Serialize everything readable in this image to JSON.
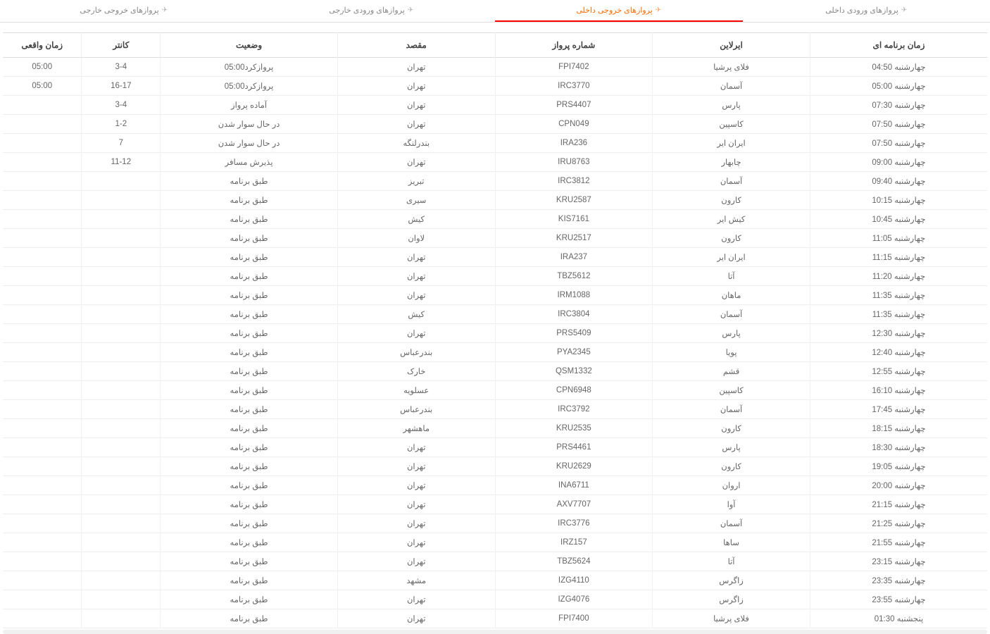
{
  "tabs": [
    {
      "label": "پروازهای ورودی داخلی",
      "active": false
    },
    {
      "label": "پروازهای خروجی داخلی",
      "active": true
    },
    {
      "label": "پروازهای ورودی خارجی",
      "active": false
    },
    {
      "label": "پروازهای خروجی خارجی",
      "active": false
    }
  ],
  "columns": {
    "schedule": "زمان برنامه ای",
    "airline": "ایرلاین",
    "flight": "شماره پرواز",
    "destination": "مقصد",
    "status": "وضعیت",
    "counter": "کانتر",
    "actual": "زمان واقعی"
  },
  "rows": [
    {
      "schedule": "چهارشنبه 04:50",
      "airline": "فلای پرشیا",
      "flight": "FPI7402",
      "destination": "تهران",
      "status": "پروازکرد05:00",
      "counter": "3-4",
      "actual": "05:00"
    },
    {
      "schedule": "چهارشنبه 05:00",
      "airline": "آسمان",
      "flight": "IRC3770",
      "destination": "تهران",
      "status": "پروازکرد05:00",
      "counter": "16-17",
      "actual": "05:00"
    },
    {
      "schedule": "چهارشنبه 07:30",
      "airline": "پارس",
      "flight": "PRS4407",
      "destination": "تهران",
      "status": "آماده پرواز",
      "counter": "3-4",
      "actual": ""
    },
    {
      "schedule": "چهارشنبه 07:50",
      "airline": "کاسپین",
      "flight": "CPN049",
      "destination": "تهران",
      "status": "در حال سوار شدن",
      "counter": "1-2",
      "actual": ""
    },
    {
      "schedule": "چهارشنبه 07:50",
      "airline": "ایران ایر",
      "flight": "IRA236",
      "destination": "بندرلنگه",
      "status": "در حال سوار شدن",
      "counter": "7",
      "actual": ""
    },
    {
      "schedule": "چهارشنبه 09:00",
      "airline": "چابهار",
      "flight": "IRU8763",
      "destination": "تهران",
      "status": "پذیرش مسافر",
      "counter": "11-12",
      "actual": ""
    },
    {
      "schedule": "چهارشنبه 09:40",
      "airline": "آسمان",
      "flight": "IRC3812",
      "destination": "تبریز",
      "status": "طبق برنامه",
      "counter": "",
      "actual": ""
    },
    {
      "schedule": "چهارشنبه 10:15",
      "airline": "کارون",
      "flight": "KRU2587",
      "destination": "سیری",
      "status": "طبق برنامه",
      "counter": "",
      "actual": ""
    },
    {
      "schedule": "چهارشنبه 10:45",
      "airline": "کیش ایر",
      "flight": "KIS7161",
      "destination": "کیش",
      "status": "طبق برنامه",
      "counter": "",
      "actual": ""
    },
    {
      "schedule": "چهارشنبه 11:05",
      "airline": "کارون",
      "flight": "KRU2517",
      "destination": "لاوان",
      "status": "طبق برنامه",
      "counter": "",
      "actual": ""
    },
    {
      "schedule": "چهارشنبه 11:15",
      "airline": "ایران ایر",
      "flight": "IRA237",
      "destination": "تهران",
      "status": "طبق برنامه",
      "counter": "",
      "actual": ""
    },
    {
      "schedule": "چهارشنبه 11:20",
      "airline": "آتا",
      "flight": "TBZ5612",
      "destination": "تهران",
      "status": "طبق برنامه",
      "counter": "",
      "actual": ""
    },
    {
      "schedule": "چهارشنبه 11:35",
      "airline": "ماهان",
      "flight": "IRM1088",
      "destination": "تهران",
      "status": "طبق برنامه",
      "counter": "",
      "actual": ""
    },
    {
      "schedule": "چهارشنبه 11:35",
      "airline": "آسمان",
      "flight": "IRC3804",
      "destination": "کیش",
      "status": "طبق برنامه",
      "counter": "",
      "actual": ""
    },
    {
      "schedule": "چهارشنبه 12:30",
      "airline": "پارس",
      "flight": "PRS5409",
      "destination": "تهران",
      "status": "طبق برنامه",
      "counter": "",
      "actual": ""
    },
    {
      "schedule": "چهارشنبه 12:40",
      "airline": "پویا",
      "flight": "PYA2345",
      "destination": "بندرعباس",
      "status": "طبق برنامه",
      "counter": "",
      "actual": ""
    },
    {
      "schedule": "چهارشنبه 12:55",
      "airline": "قشم",
      "flight": "QSM1332",
      "destination": "خارک",
      "status": "طبق برنامه",
      "counter": "",
      "actual": ""
    },
    {
      "schedule": "چهارشنبه 16:10",
      "airline": "کاسپین",
      "flight": "CPN6948",
      "destination": "عسلویه",
      "status": "طبق برنامه",
      "counter": "",
      "actual": ""
    },
    {
      "schedule": "چهارشنبه 17:45",
      "airline": "آسمان",
      "flight": "IRC3792",
      "destination": "بندرعباس",
      "status": "طبق برنامه",
      "counter": "",
      "actual": ""
    },
    {
      "schedule": "چهارشنبه 18:15",
      "airline": "کارون",
      "flight": "KRU2535",
      "destination": "ماهشهر",
      "status": "طبق برنامه",
      "counter": "",
      "actual": ""
    },
    {
      "schedule": "چهارشنبه 18:30",
      "airline": "پارس",
      "flight": "PRS4461",
      "destination": "تهران",
      "status": "طبق برنامه",
      "counter": "",
      "actual": ""
    },
    {
      "schedule": "چهارشنبه 19:05",
      "airline": "کارون",
      "flight": "KRU2629",
      "destination": "تهران",
      "status": "طبق برنامه",
      "counter": "",
      "actual": ""
    },
    {
      "schedule": "چهارشنبه 20:00",
      "airline": "اروان",
      "flight": "INA6711",
      "destination": "تهران",
      "status": "طبق برنامه",
      "counter": "",
      "actual": ""
    },
    {
      "schedule": "چهارشنبه 21:15",
      "airline": "آوا",
      "flight": "AXV7707",
      "destination": "تهران",
      "status": "طبق برنامه",
      "counter": "",
      "actual": ""
    },
    {
      "schedule": "چهارشنبه 21:25",
      "airline": "آسمان",
      "flight": "IRC3776",
      "destination": "تهران",
      "status": "طبق برنامه",
      "counter": "",
      "actual": ""
    },
    {
      "schedule": "چهارشنبه 21:55",
      "airline": "ساها",
      "flight": "IRZ157",
      "destination": "تهران",
      "status": "طبق برنامه",
      "counter": "",
      "actual": ""
    },
    {
      "schedule": "چهارشنبه 23:15",
      "airline": "آتا",
      "flight": "TBZ5624",
      "destination": "تهران",
      "status": "طبق برنامه",
      "counter": "",
      "actual": ""
    },
    {
      "schedule": "چهارشنبه 23:35",
      "airline": "زاگرس",
      "flight": "IZG4110",
      "destination": "مشهد",
      "status": "طبق برنامه",
      "counter": "",
      "actual": ""
    },
    {
      "schedule": "چهارشنبه 23:55",
      "airline": "زاگرس",
      "flight": "IZG4076",
      "destination": "تهران",
      "status": "طبق برنامه",
      "counter": "",
      "actual": ""
    },
    {
      "schedule": "پنجشنبه 01:30",
      "airline": "فلای پرشیا",
      "flight": "FPI7400",
      "destination": "تهران",
      "status": "طبق برنامه",
      "counter": "",
      "actual": ""
    }
  ]
}
